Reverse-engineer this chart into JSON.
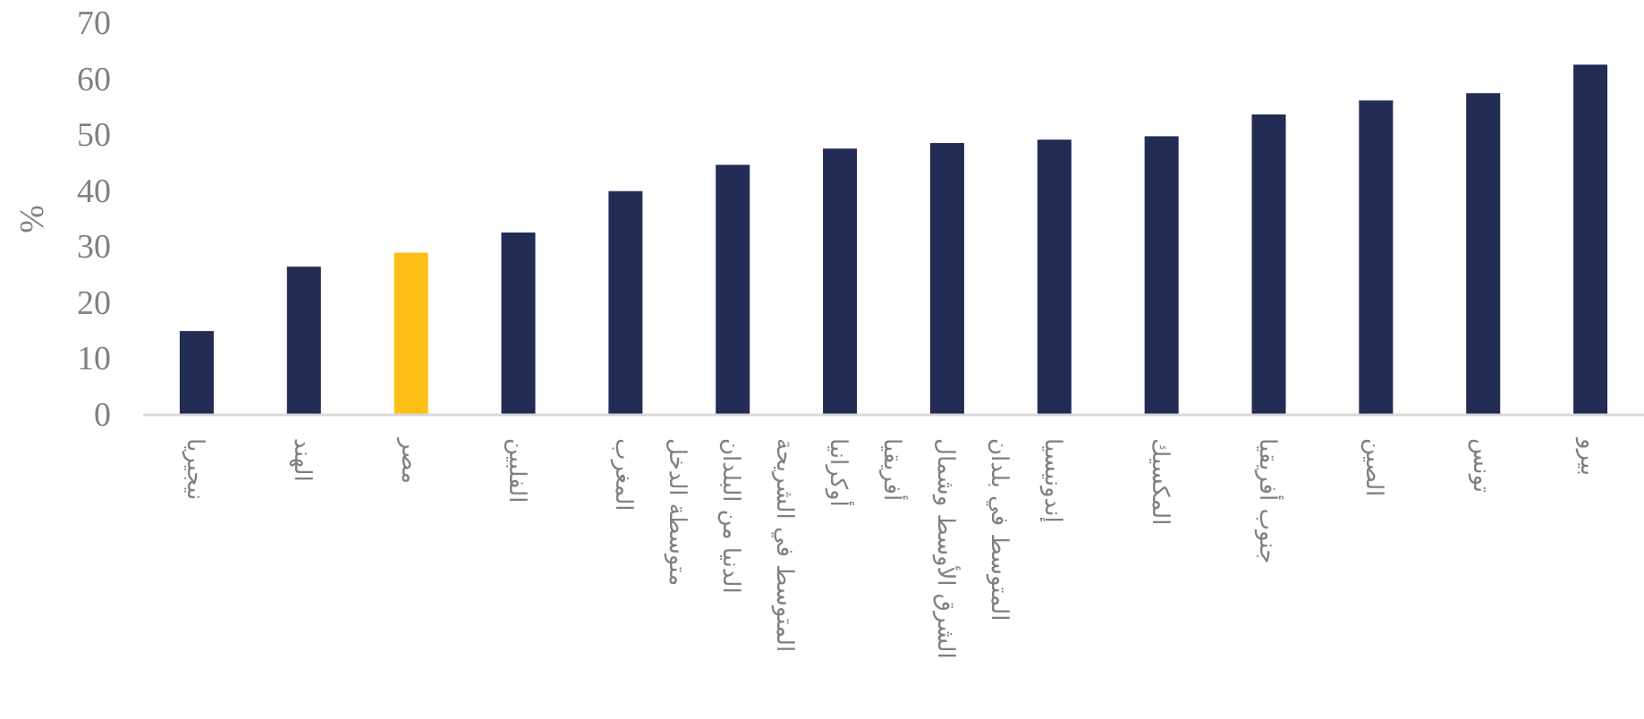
{
  "chart_data": {
    "type": "bar",
    "ylabel": "%",
    "categories": [
      "نيجيريا",
      "الهند",
      "مصر",
      "الفلبين",
      "المغرب",
      "المتوسط في الشريحة الدنيا من البلدان متوسطة الدخل",
      "أوكرانيا",
      "المتوسط في بلدان الشرق الأوسط وشمال أفريقيا",
      "إندونيسيا",
      "المكسيك",
      "جنوب أفريقيا",
      "الصين",
      "تونس",
      "بيرو"
    ],
    "values": [
      15,
      26.5,
      29,
      32.6,
      40,
      44.7,
      47.6,
      48.6,
      49.2,
      49.8,
      53.7,
      56.2,
      57.5,
      62.6
    ],
    "colors": [
      "#222c55",
      "#222c55",
      "#fcbf18",
      "#222c55",
      "#222c55",
      "#222c55",
      "#222c55",
      "#222c55",
      "#222c55",
      "#222c55",
      "#222c55",
      "#222c55",
      "#222c55",
      "#222c55"
    ],
    "ylim": [
      0,
      70
    ],
    "yticks": [
      0,
      10,
      20,
      30,
      40,
      50,
      60,
      70
    ],
    "grid": false
  }
}
